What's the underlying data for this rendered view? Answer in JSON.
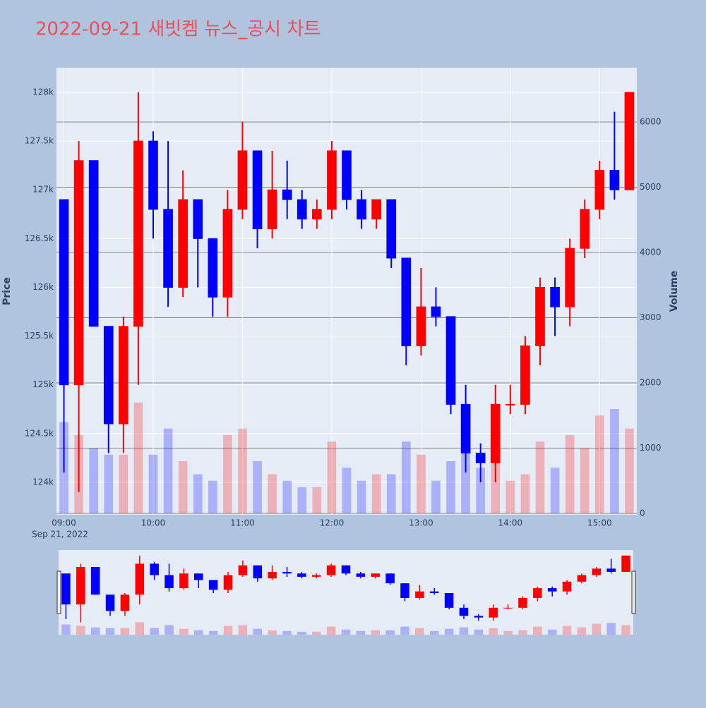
{
  "chart_data": {
    "type": "candlestick",
    "title": "2022-09-21 새빗켐 뉴스_공시 차트",
    "y_title": "Price",
    "y2_title": "Volume",
    "x_date_label": "Sep 21, 2022",
    "up_color": "#ff0000",
    "down_color": "#0000ff",
    "x": [
      "2022-09-21 09:00",
      "2022-09-21 09:10",
      "2022-09-21 09:20",
      "2022-09-21 09:30",
      "2022-09-21 09:40",
      "2022-09-21 09:50",
      "2022-09-21 10:00",
      "2022-09-21 10:10",
      "2022-09-21 10:20",
      "2022-09-21 10:30",
      "2022-09-21 10:40",
      "2022-09-21 10:50",
      "2022-09-21 11:00",
      "2022-09-21 11:10",
      "2022-09-21 11:20",
      "2022-09-21 11:30",
      "2022-09-21 11:40",
      "2022-09-21 11:50",
      "2022-09-21 12:00",
      "2022-09-21 12:10",
      "2022-09-21 12:20",
      "2022-09-21 12:30",
      "2022-09-21 12:40",
      "2022-09-21 12:50",
      "2022-09-21 13:00",
      "2022-09-21 13:10",
      "2022-09-21 13:20",
      "2022-09-21 13:30",
      "2022-09-21 13:40",
      "2022-09-21 13:50",
      "2022-09-21 14:00",
      "2022-09-21 14:10",
      "2022-09-21 14:20",
      "2022-09-21 14:30",
      "2022-09-21 14:40",
      "2022-09-21 14:50",
      "2022-09-21 15:00",
      "2022-09-21 15:10",
      "2022-09-21 15:20"
    ],
    "open": [
      126900,
      125000,
      127300,
      125600,
      124600,
      125600,
      127500,
      126800,
      126000,
      126900,
      126500,
      125900,
      126800,
      127400,
      126600,
      127000,
      126900,
      126700,
      126800,
      127400,
      126900,
      126700,
      126900,
      126300,
      125400,
      125800,
      125700,
      124800,
      124300,
      124200,
      124800,
      124800,
      125400,
      126000,
      125800,
      126400,
      126800,
      127200,
      127000
    ],
    "high": [
      126900,
      127500,
      127300,
      125600,
      125700,
      128000,
      127600,
      127500,
      127200,
      126900,
      126500,
      127000,
      127700,
      127400,
      127400,
      127300,
      127000,
      126900,
      127500,
      127400,
      127000,
      126900,
      126900,
      126300,
      126200,
      126000,
      125700,
      125000,
      124400,
      125000,
      125000,
      125500,
      126100,
      126100,
      126500,
      126900,
      127300,
      127800,
      128000
    ],
    "low": [
      124100,
      123900,
      125600,
      124300,
      124300,
      125000,
      126500,
      125800,
      125900,
      126000,
      125700,
      125700,
      126700,
      126400,
      126500,
      126700,
      126600,
      126600,
      126700,
      126800,
      126600,
      126600,
      126200,
      125200,
      125300,
      125600,
      124700,
      124100,
      124000,
      124000,
      124700,
      124700,
      125200,
      125500,
      125600,
      126300,
      126700,
      126900,
      127000
    ],
    "close": [
      125000,
      127300,
      125600,
      124600,
      125600,
      127500,
      126800,
      126000,
      126900,
      126500,
      125900,
      126800,
      127400,
      126600,
      127000,
      126900,
      126700,
      126800,
      127400,
      126900,
      126700,
      126900,
      126300,
      125400,
      125800,
      125700,
      124800,
      124300,
      124200,
      124800,
      124800,
      125400,
      126000,
      125800,
      126400,
      126800,
      127200,
      127000,
      128000
    ],
    "volume": [
      1400,
      1200,
      1000,
      900,
      900,
      1700,
      900,
      1300,
      800,
      600,
      500,
      1200,
      1300,
      800,
      600,
      500,
      400,
      400,
      1100,
      700,
      500,
      600,
      600,
      1100,
      900,
      500,
      800,
      1000,
      700,
      900,
      500,
      600,
      1100,
      700,
      1200,
      1000,
      1500,
      1600,
      1300
    ],
    "xlim": [
      "2022-09-21 08:55",
      "2022-09-21 15:25"
    ],
    "xticks": [
      {
        "value": "2022-09-21 09:00",
        "label": "09:00"
      },
      {
        "value": "2022-09-21 10:00",
        "label": "10:00"
      },
      {
        "value": "2022-09-21 11:00",
        "label": "11:00"
      },
      {
        "value": "2022-09-21 12:00",
        "label": "12:00"
      },
      {
        "value": "2022-09-21 13:00",
        "label": "13:00"
      },
      {
        "value": "2022-09-21 14:00",
        "label": "14:00"
      },
      {
        "value": "2022-09-21 15:00",
        "label": "15:00"
      }
    ],
    "ylim": [
      123667,
      128253
    ],
    "yticks": [
      {
        "value": 124000,
        "label": "124k"
      },
      {
        "value": 124500,
        "label": "124.5k"
      },
      {
        "value": 125000,
        "label": "125k"
      },
      {
        "value": 125500,
        "label": "125.5k"
      },
      {
        "value": 126000,
        "label": "126k"
      },
      {
        "value": 126500,
        "label": "126.5k"
      },
      {
        "value": 127000,
        "label": "127k"
      },
      {
        "value": 127500,
        "label": "127.5k"
      },
      {
        "value": 128000,
        "label": "128k"
      }
    ],
    "y2lim": [
      0,
      6832
    ],
    "y2ticks": [
      0,
      1000,
      2000,
      3000,
      4000,
      5000,
      6000
    ],
    "grid": true
  }
}
